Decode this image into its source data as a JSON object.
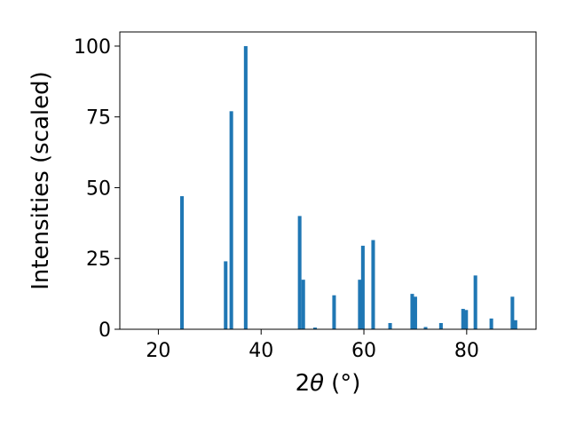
{
  "chart_data": {
    "type": "bar",
    "xlabel_parts": {
      "prefix": "2",
      "symbol": "θ",
      "unit": "(°)"
    },
    "ylabel": "Intensities (scaled)",
    "xlim": [
      12.5,
      93.5
    ],
    "ylim": [
      0,
      105
    ],
    "xticks": [
      20,
      40,
      60,
      80
    ],
    "yticks": [
      0,
      25,
      50,
      75,
      100
    ],
    "bar_width": 0.7,
    "bar_color": "#1f77b4",
    "grid": false,
    "points": [
      {
        "x": 24.6,
        "y": 47
      },
      {
        "x": 33.1,
        "y": 24
      },
      {
        "x": 34.2,
        "y": 77
      },
      {
        "x": 37.0,
        "y": 100
      },
      {
        "x": 47.5,
        "y": 40
      },
      {
        "x": 48.2,
        "y": 17.5
      },
      {
        "x": 50.5,
        "y": 0.6
      },
      {
        "x": 54.2,
        "y": 12
      },
      {
        "x": 59.2,
        "y": 17.5
      },
      {
        "x": 59.8,
        "y": 29.5
      },
      {
        "x": 61.8,
        "y": 31.5
      },
      {
        "x": 65.1,
        "y": 2.2
      },
      {
        "x": 69.4,
        "y": 12.5
      },
      {
        "x": 70.0,
        "y": 11.5
      },
      {
        "x": 72.0,
        "y": 0.8
      },
      {
        "x": 75.0,
        "y": 2.2
      },
      {
        "x": 79.3,
        "y": 7.2
      },
      {
        "x": 79.9,
        "y": 6.8
      },
      {
        "x": 81.7,
        "y": 19
      },
      {
        "x": 84.8,
        "y": 3.8
      },
      {
        "x": 88.9,
        "y": 11.5
      },
      {
        "x": 89.5,
        "y": 3.2
      }
    ]
  }
}
